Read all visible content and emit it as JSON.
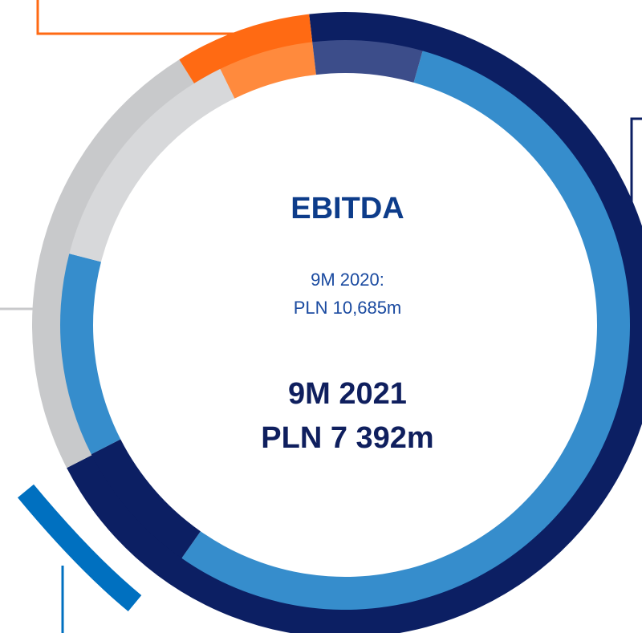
{
  "title": "EBITDA",
  "previous": {
    "period": "9M 2020:",
    "value": "PLN 10,685m"
  },
  "current": {
    "period": "9M 2021",
    "value": "PLN 7 392m"
  }
}
